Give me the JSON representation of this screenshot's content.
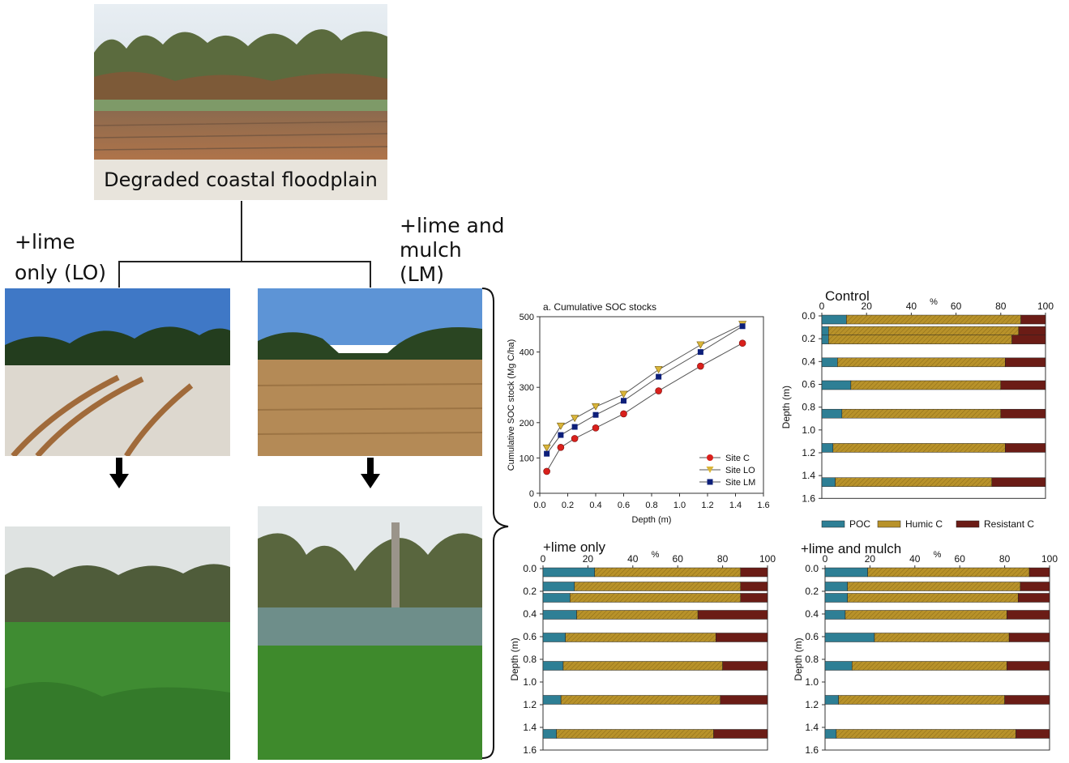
{
  "labels": {
    "degraded": "Degraded coastal floodplain",
    "lime_only": [
      "+lime",
      "only (LO)"
    ],
    "lime_mulch": [
      "+lime and",
      "mulch",
      "(LM)"
    ]
  },
  "colors": {
    "poc": "#2e7f95",
    "humic": "#b8922a",
    "resistant": "#6b1c16",
    "site_c": "#d9201c",
    "site_lo": "#d9b53a",
    "site_lm": "#0d1f7a"
  },
  "chart_data": [
    {
      "type": "line",
      "title": "a. Cumulative SOC stocks",
      "xlabel": "Depth (m)",
      "ylabel": "Cumulative SOC stock (Mg C/ha)",
      "xlim": [
        0,
        1.6
      ],
      "ylim": [
        0,
        500
      ],
      "xticks": [
        "0.0",
        "0.2",
        "0.4",
        "0.6",
        "0.8",
        "1.0",
        "1.2",
        "1.4",
        "1.6"
      ],
      "yticks": [
        "0",
        "100",
        "200",
        "300",
        "400",
        "500"
      ],
      "legend_position": "bottom-right",
      "series": [
        {
          "name": "Site C",
          "marker": "circle",
          "x": [
            0.05,
            0.15,
            0.25,
            0.4,
            0.6,
            0.85,
            1.15,
            1.45
          ],
          "y": [
            62,
            130,
            155,
            185,
            225,
            290,
            360,
            425
          ]
        },
        {
          "name": "Site LO",
          "marker": "triangle",
          "x": [
            0.05,
            0.15,
            0.25,
            0.4,
            0.6,
            0.85,
            1.15,
            1.45
          ],
          "y": [
            128,
            190,
            212,
            245,
            280,
            350,
            420,
            478
          ]
        },
        {
          "name": "Site LM",
          "marker": "square",
          "x": [
            0.05,
            0.15,
            0.25,
            0.4,
            0.6,
            0.85,
            1.15,
            1.45
          ],
          "y": [
            112,
            165,
            188,
            222,
            262,
            330,
            400,
            473
          ]
        }
      ]
    },
    {
      "type": "bar",
      "title": "Control",
      "xlabel": "%",
      "ylabel": "Depth (m)",
      "stacked": true,
      "orientation": "horizontal",
      "xlim": [
        0,
        100
      ],
      "ylim": [
        0,
        1.6
      ],
      "depths": [
        0.025,
        0.125,
        0.2,
        0.4,
        0.6,
        0.85,
        1.15,
        1.45
      ],
      "series": [
        {
          "name": "POC",
          "values": [
            11,
            3,
            3,
            7,
            13,
            9,
            5,
            6
          ]
        },
        {
          "name": "Humic C",
          "values": [
            78,
            85,
            82,
            75,
            67,
            71,
            77,
            70
          ]
        },
        {
          "name": "Resistant C",
          "values": [
            11,
            12,
            15,
            18,
            20,
            20,
            18,
            24
          ]
        }
      ]
    },
    {
      "type": "bar",
      "title": "+lime only",
      "xlabel": "%",
      "ylabel": "Depth (m)",
      "stacked": true,
      "orientation": "horizontal",
      "xlim": [
        0,
        100
      ],
      "ylim": [
        0,
        1.6
      ],
      "depths": [
        0.025,
        0.15,
        0.25,
        0.4,
        0.6,
        0.85,
        1.15,
        1.45
      ],
      "series": [
        {
          "name": "POC",
          "values": [
            23,
            14,
            12,
            15,
            10,
            9,
            8,
            6
          ]
        },
        {
          "name": "Humic C",
          "values": [
            65,
            74,
            76,
            54,
            67,
            71,
            71,
            70
          ]
        },
        {
          "name": "Resistant C",
          "values": [
            12,
            12,
            12,
            31,
            23,
            20,
            21,
            24
          ]
        }
      ]
    },
    {
      "type": "bar",
      "title": "+lime and mulch",
      "xlabel": "%",
      "ylabel": "Depth (m)",
      "stacked": true,
      "orientation": "horizontal",
      "xlim": [
        0,
        100
      ],
      "ylim": [
        0,
        1.6
      ],
      "depths": [
        0.025,
        0.15,
        0.25,
        0.4,
        0.6,
        0.85,
        1.15,
        1.45
      ],
      "series": [
        {
          "name": "POC",
          "values": [
            19,
            10,
            10,
            9,
            22,
            12,
            6,
            5
          ]
        },
        {
          "name": "Humic C",
          "values": [
            72,
            77,
            76,
            72,
            60,
            69,
            74,
            80
          ]
        },
        {
          "name": "Resistant C",
          "values": [
            9,
            13,
            14,
            19,
            18,
            19,
            20,
            15
          ]
        }
      ]
    }
  ]
}
